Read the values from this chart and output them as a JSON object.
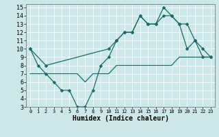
{
  "xlabel": "Humidex (Indice chaleur)",
  "bg_color": "#cce8e8",
  "line_color": "#1a6b6b",
  "xlim": [
    -0.5,
    23.5
  ],
  "ylim": [
    3,
    15.4
  ],
  "xticks": [
    0,
    1,
    2,
    3,
    4,
    5,
    6,
    7,
    8,
    9,
    10,
    11,
    12,
    13,
    14,
    15,
    16,
    17,
    18,
    19,
    20,
    21,
    22,
    23
  ],
  "yticks": [
    3,
    4,
    5,
    6,
    7,
    8,
    9,
    10,
    11,
    12,
    13,
    14,
    15
  ],
  "line1_x": [
    0,
    1,
    2,
    3,
    4,
    5,
    6,
    7,
    8,
    9,
    10,
    11,
    12,
    13,
    14,
    15,
    16,
    17,
    18,
    19,
    20,
    21,
    22,
    23
  ],
  "line1_y": [
    10,
    8,
    7,
    6,
    5,
    5,
    3,
    3,
    5,
    8,
    9,
    11,
    12,
    12,
    14,
    13,
    13,
    15,
    14,
    13,
    10,
    11,
    9,
    9
  ],
  "line2_x": [
    0,
    2,
    10,
    11,
    12,
    13,
    14,
    15,
    16,
    17,
    18,
    19,
    20,
    21,
    22,
    23
  ],
  "line2_y": [
    10,
    8,
    10,
    11,
    12,
    12,
    14,
    13,
    13,
    14,
    14,
    13,
    13,
    11,
    10,
    9
  ],
  "line3_x": [
    0,
    1,
    2,
    3,
    4,
    5,
    6,
    7,
    8,
    9,
    10,
    11,
    12,
    13,
    14,
    15,
    16,
    17,
    18,
    19,
    20,
    21,
    22,
    23
  ],
  "line3_y": [
    7,
    7,
    7,
    7,
    7,
    7,
    7,
    6,
    7,
    7,
    7,
    8,
    8,
    8,
    8,
    8,
    8,
    8,
    8,
    9,
    9,
    9,
    9,
    9
  ],
  "markersize": 2.5,
  "linewidth": 0.9
}
